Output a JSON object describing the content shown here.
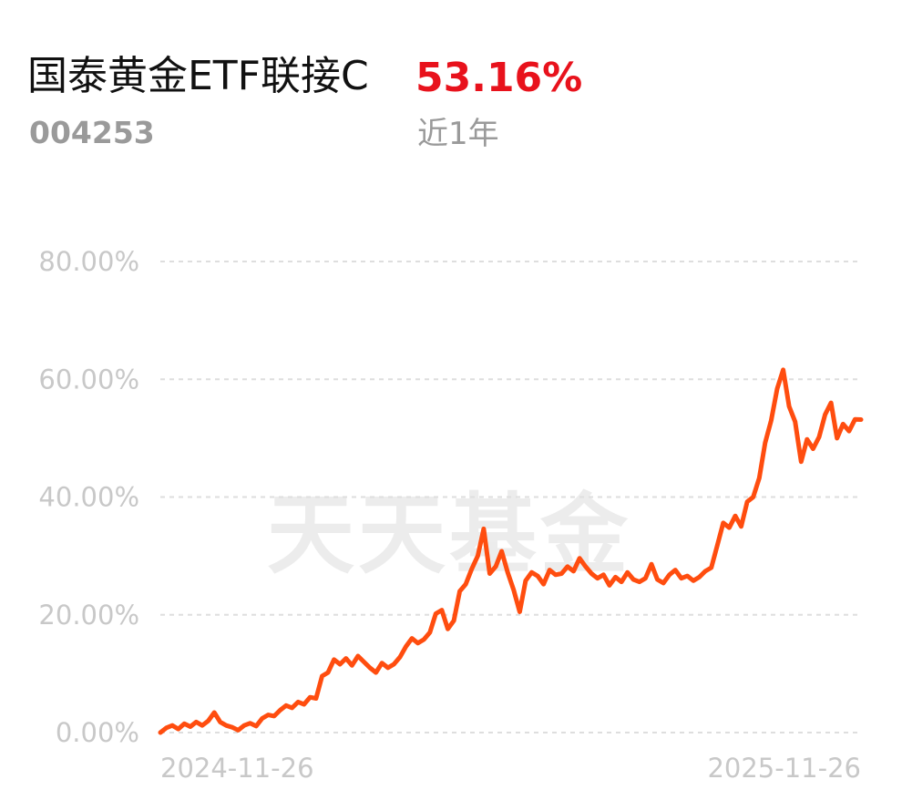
{
  "header": {
    "fund_name": "国泰黄金ETF联接C",
    "fund_code": "004253",
    "return_value": "53.16%",
    "return_period": "近1年"
  },
  "watermark": "天天基金",
  "colors": {
    "line": "#ff4d0f",
    "return_positive": "#e8121c",
    "grid": "#dedede",
    "axis_text": "#c8c8c8"
  },
  "chart_data": {
    "type": "line",
    "title": "",
    "xlabel": "",
    "ylabel": "",
    "y_tick_labels": [
      "0.00%",
      "20.00%",
      "40.00%",
      "60.00%",
      "80.00%"
    ],
    "y_ticks": [
      0,
      20,
      40,
      60,
      80
    ],
    "ylim": [
      0,
      80
    ],
    "x_tick_labels": [
      "2024-11-26",
      "2025-11-26"
    ],
    "xlim": [
      "2024-11-26",
      "2025-11-26"
    ],
    "grid": true,
    "legend": "none",
    "series": [
      {
        "values": [
          0.0,
          0.8,
          1.2,
          0.6,
          1.5,
          1.0,
          1.8,
          1.2,
          2.0,
          3.4,
          1.8,
          1.2,
          0.9,
          0.4,
          1.2,
          1.6,
          1.1,
          2.4,
          3.0,
          2.8,
          3.8,
          4.6,
          4.2,
          5.2,
          4.8,
          6.0,
          5.8,
          9.6,
          10.2,
          12.4,
          11.6,
          12.6,
          11.4,
          13.0,
          12.0,
          11.0,
          10.2,
          11.8,
          11.0,
          11.6,
          12.8,
          14.6,
          16.0,
          15.2,
          15.8,
          17.0,
          20.2,
          20.8,
          17.6,
          19.0,
          24.0,
          25.2,
          27.8,
          30.0,
          34.6,
          27.0,
          28.2,
          30.8,
          27.2,
          24.2,
          20.5,
          25.8,
          27.2,
          26.6,
          25.2,
          27.6,
          26.8,
          27.0,
          28.2,
          27.4,
          29.6,
          28.2,
          27.0,
          26.2,
          26.8,
          25.0,
          26.4,
          25.6,
          27.2,
          26.0,
          25.6,
          26.2,
          28.6,
          26.0,
          25.4,
          26.8,
          27.6,
          26.2,
          26.6,
          25.8,
          26.4,
          27.4,
          28.0,
          31.8,
          35.6,
          34.8,
          36.8,
          35.0,
          39.2,
          40.0,
          43.2,
          49.2,
          53.0,
          58.4,
          61.6,
          55.4,
          52.8,
          46.0,
          49.8,
          48.2,
          50.2,
          54.0,
          56.0,
          50.0,
          52.4,
          51.2,
          53.2,
          53.16
        ]
      }
    ]
  }
}
